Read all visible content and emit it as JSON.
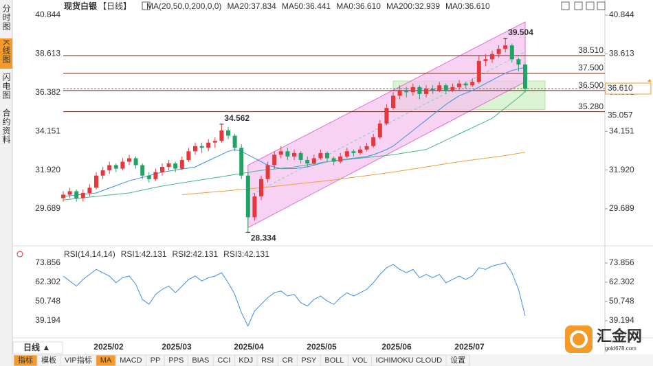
{
  "sidebar": [
    "分时图",
    "K线图",
    "闪电图",
    "合约资料"
  ],
  "chart_data": [
    {
      "type": "candlestick",
      "title": "现货白银",
      "period": "【日线】",
      "indicator": "MA(20,50,0,200,0,0)",
      "legend": [
        {
          "text": "MA20:37.834",
          "color": "#3a8ee6"
        },
        {
          "text": "MA50:36.441",
          "color": "#43b58a"
        },
        {
          "text": "MA0:36.610",
          "color": "#2bb3c9"
        },
        {
          "text": "MA200:32.939",
          "color": "#e8a040"
        },
        {
          "text": "MA0:36.610",
          "color": "#e070d0"
        }
      ],
      "up_color": "#e5383b",
      "down_color": "#21a366",
      "open": [
        30.3,
        30.5,
        30.7,
        30.3,
        30.6,
        30.9,
        31.6,
        31.9,
        32.2,
        32.0,
        32.4,
        32.6,
        32.2,
        31.6,
        31.4,
        31.8,
        32.1,
        32.3,
        32.0,
        32.5,
        33.0,
        33.3,
        33.2,
        33.5,
        33.6,
        34.2,
        33.9,
        33.2,
        31.6,
        29.2,
        30.4,
        31.4,
        32.2,
        32.8,
        33.0,
        32.7,
        32.9,
        32.5,
        32.3,
        32.6,
        32.9,
        32.6,
        32.4,
        32.7,
        33.0,
        32.9,
        33.1,
        33.3,
        33.8,
        34.6,
        35.5,
        36.2,
        36.5,
        36.4,
        36.7,
        36.3,
        36.6,
        36.5,
        36.8,
        36.5,
        36.7,
        36.9,
        36.8,
        37.0,
        38.2,
        38.3,
        38.6,
        38.9,
        39.1,
        38.3,
        38.0
      ],
      "high": [
        30.7,
        30.9,
        30.8,
        30.8,
        31.1,
        31.8,
        32.1,
        32.4,
        32.3,
        32.6,
        32.8,
        32.7,
        32.3,
        31.8,
        32.0,
        32.3,
        32.5,
        32.4,
        32.7,
        33.2,
        33.5,
        33.5,
        33.7,
        33.8,
        34.562,
        34.4,
        34.0,
        33.4,
        31.8,
        30.6,
        31.6,
        32.4,
        33.0,
        33.3,
        33.2,
        33.1,
        33.0,
        32.7,
        32.8,
        33.1,
        33.0,
        32.7,
        32.9,
        33.2,
        33.1,
        33.3,
        33.5,
        34.0,
        34.8,
        35.7,
        36.4,
        36.8,
        36.7,
        36.9,
        36.8,
        36.8,
        36.8,
        37.0,
        36.9,
        36.9,
        37.1,
        37.0,
        37.2,
        38.5,
        38.6,
        38.8,
        39.1,
        39.504,
        39.2,
        38.4,
        38.1
      ],
      "low": [
        30.1,
        30.3,
        30.1,
        30.1,
        30.4,
        30.8,
        31.4,
        31.7,
        31.8,
        31.9,
        32.2,
        32.0,
        31.4,
        31.2,
        31.3,
        31.6,
        31.9,
        31.8,
        31.9,
        32.4,
        32.8,
        32.9,
        33.0,
        33.2,
        33.5,
        33.7,
        33.0,
        31.4,
        28.334,
        29.0,
        30.2,
        31.2,
        32.0,
        32.6,
        32.5,
        32.5,
        32.3,
        32.1,
        32.2,
        32.5,
        32.4,
        32.2,
        32.3,
        32.6,
        32.7,
        32.8,
        33.0,
        33.2,
        33.7,
        34.5,
        35.4,
        36.0,
        36.1,
        36.2,
        36.0,
        36.1,
        36.3,
        36.4,
        36.3,
        36.4,
        36.5,
        36.6,
        36.7,
        36.9,
        37.9,
        38.1,
        38.4,
        38.7,
        38.1,
        37.6,
        36.4
      ],
      "close": [
        30.5,
        30.7,
        30.3,
        30.6,
        30.9,
        31.6,
        31.9,
        32.2,
        32.0,
        32.4,
        32.6,
        32.2,
        31.6,
        31.4,
        31.8,
        32.1,
        32.3,
        32.0,
        32.5,
        33.0,
        33.3,
        33.2,
        33.5,
        33.6,
        34.2,
        33.9,
        33.2,
        31.6,
        29.2,
        30.4,
        31.4,
        32.2,
        32.8,
        33.0,
        32.7,
        32.9,
        32.5,
        32.3,
        32.6,
        32.9,
        32.6,
        32.4,
        32.7,
        33.0,
        32.9,
        33.1,
        33.3,
        33.8,
        34.6,
        35.5,
        36.2,
        36.5,
        36.4,
        36.7,
        36.3,
        36.6,
        36.5,
        36.8,
        36.5,
        36.7,
        36.9,
        36.8,
        37.0,
        38.2,
        38.3,
        38.6,
        38.9,
        39.1,
        38.3,
        38.0,
        36.6
      ],
      "ma_series": [
        {
          "color": "#3a8ee6",
          "values": [
            30.4,
            30.44,
            30.48,
            30.52,
            30.56,
            30.6,
            30.74,
            30.88,
            31.02,
            31.16,
            31.3,
            31.4,
            31.5,
            31.6,
            31.7,
            31.8,
            31.86,
            31.92,
            31.98,
            32.04,
            32.1,
            32.28,
            32.46,
            32.64,
            32.82,
            33.0,
            33.1,
            33.0,
            32.8,
            32.6,
            32.4,
            32.2,
            32.1,
            32.0,
            32.0,
            32.0,
            32.05,
            32.1,
            32.2,
            32.3,
            32.4,
            32.45,
            32.5,
            32.55,
            32.6,
            32.65,
            32.7,
            32.8,
            32.95,
            33.1,
            33.3,
            33.6,
            33.9,
            34.2,
            34.5,
            34.8,
            35.1,
            35.4,
            35.7,
            35.95,
            36.2,
            36.35,
            36.5,
            36.7,
            36.9,
            37.1,
            37.3,
            37.5,
            37.65,
            37.75,
            37.834
          ]
        },
        {
          "color": "#43b58a",
          "values": [
            30.2,
            30.24,
            30.28,
            30.32,
            30.36,
            30.4,
            30.44,
            30.48,
            30.52,
            30.56,
            30.6,
            30.68,
            30.76,
            30.84,
            30.92,
            31.0,
            31.06,
            31.12,
            31.18,
            31.24,
            31.3,
            31.36,
            31.42,
            31.48,
            31.54,
            31.6,
            31.66,
            31.72,
            31.78,
            31.84,
            31.9,
            31.94,
            31.98,
            32.02,
            32.06,
            32.1,
            32.16,
            32.22,
            32.28,
            32.34,
            32.4,
            32.44,
            32.48,
            32.52,
            32.56,
            32.6,
            32.64,
            32.68,
            32.72,
            32.76,
            32.8,
            32.86,
            32.92,
            32.98,
            33.04,
            33.1,
            33.28,
            33.46,
            33.64,
            33.82,
            34.0,
            34.18,
            34.36,
            34.54,
            34.72,
            34.9,
            35.2,
            35.5,
            35.8,
            36.1,
            36.441
          ]
        },
        {
          "color": "#e8a040",
          "values": [
            null,
            null,
            null,
            null,
            null,
            null,
            null,
            null,
            null,
            null,
            null,
            null,
            null,
            null,
            null,
            null,
            null,
            null,
            30.5,
            30.53,
            30.57,
            30.6,
            30.63,
            30.67,
            30.7,
            30.73,
            30.77,
            30.8,
            30.83,
            30.87,
            30.9,
            30.94,
            30.98,
            31.02,
            31.06,
            31.1,
            31.14,
            31.18,
            31.22,
            31.26,
            31.3,
            31.35,
            31.4,
            31.45,
            31.5,
            31.55,
            31.6,
            31.65,
            31.7,
            31.75,
            31.8,
            31.86,
            31.92,
            31.98,
            32.04,
            32.1,
            32.16,
            32.22,
            32.28,
            32.34,
            32.4,
            32.45,
            32.5,
            32.55,
            32.6,
            32.65,
            32.7,
            32.76,
            32.82,
            32.88,
            32.939
          ]
        }
      ],
      "channel": {
        "lower": [
          28.6,
          37.0
        ],
        "upper": [
          32.2,
          40.45
        ],
        "color": "#e070d0"
      },
      "zone": [
        35.4,
        37.05
      ],
      "levels": [
        {
          "value": 38.51,
          "label": "38.510"
        },
        {
          "value": 37.5,
          "label": "37.500"
        },
        {
          "value": 36.5,
          "label": "36.500"
        },
        {
          "value": 35.28,
          "label": "35.280"
        }
      ],
      "current": {
        "value": 36.61,
        "label": "36.610"
      },
      "marker": 35.057,
      "annotations": [
        {
          "value": 39.504,
          "color": "#e5383b"
        },
        {
          "value": 34.562,
          "color": "#e5383b"
        },
        {
          "value": 28.334,
          "color": "#21a366"
        }
      ],
      "ylim": [
        27.87,
        40.844
      ],
      "yticks": [
        40.844,
        38.613,
        36.382,
        34.151,
        {
          "value": 31.92,
          "label": "31.920"
        },
        29.689
      ],
      "x_labels": [
        "2025/02",
        "2025/03",
        "2025/04",
        "2025/05",
        "2025/06",
        "2025/07"
      ]
    },
    {
      "type": "line",
      "title": "RSI(14,14,14)",
      "legend": [
        {
          "text": "RSI1:42.131",
          "color": "#3a8ee6"
        },
        {
          "text": "RSI2:42.131",
          "color": "#43b58a"
        },
        {
          "text": "RSI3:42.131",
          "color": "#8ab4e8"
        }
      ],
      "series": [
        {
          "color": "#3a8ee6",
          "values": [
            66,
            63,
            60,
            64,
            67,
            70,
            68,
            66,
            62,
            65,
            66,
            61,
            52,
            49,
            55,
            58,
            60,
            56,
            60,
            64,
            66,
            63,
            65,
            66,
            68,
            62,
            55,
            44,
            36,
            45,
            49,
            53,
            56,
            57,
            54,
            55,
            50,
            48,
            52,
            54,
            51,
            49,
            53,
            56,
            54,
            56,
            58,
            62,
            67,
            71,
            73,
            70,
            68,
            70,
            65,
            67,
            65,
            67,
            62,
            64,
            66,
            64,
            66,
            71,
            70,
            72,
            73,
            74,
            68,
            58,
            42.131
          ]
        }
      ],
      "ylim": [
        29.7,
        82.1
      ],
      "yticks": [
        73.856,
        62.302,
        50.748,
        39.194
      ]
    }
  ],
  "period_button": "日线 ▲",
  "toolbar": [
    "指标",
    "模板",
    "VIP指标",
    "MA",
    "MACD",
    "PP",
    "PPS",
    "BIAS",
    "CCI",
    "KDJ",
    "RSI",
    "CR",
    "PSY",
    "BOLL",
    "VOL",
    "ICHIMOKU CLOUD",
    "设置"
  ],
  "logo": {
    "name": "汇金网",
    "url": "gold678.com"
  }
}
